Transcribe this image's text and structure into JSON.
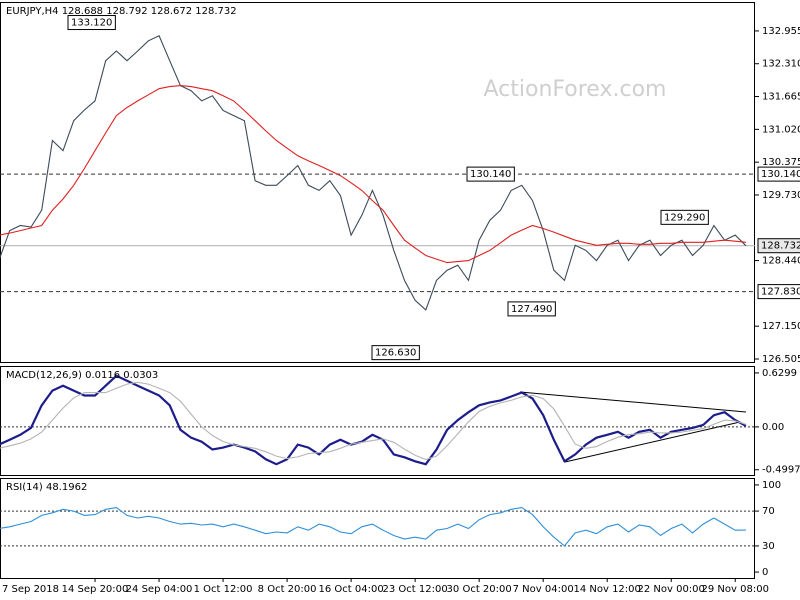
{
  "chart_data": [
    {
      "type": "line",
      "title": "EURJPY,H4  128.688 128.792 128.672 128.732",
      "watermark": "ActionForex.com",
      "ylim": [
        126.446,
        133.504
      ],
      "yticks": [
        132.955,
        {
          "value": 132.31,
          "label": "132.310"
        },
        131.665,
        {
          "value": 131.02,
          "label": "131.020"
        },
        130.375,
        {
          "value": 129.73,
          "label": "129.730"
        },
        {
          "value": 128.44,
          "label": "128.440"
        },
        {
          "value": 127.15,
          "label": "127.150"
        },
        126.505
      ],
      "levels": [
        {
          "value": 130.14,
          "label": "130.140"
        },
        {
          "value": 127.83,
          "label": "127.830"
        }
      ],
      "last_price": 128.732,
      "annotations": [
        {
          "value": 133.12,
          "label": "133.120"
        },
        {
          "value": 130.14,
          "label": "130.140"
        },
        {
          "value": 129.29,
          "label": "129.290"
        },
        {
          "value": 127.49,
          "label": "127.490"
        },
        {
          "value": 126.63,
          "label": "126.630"
        }
      ],
      "series": [
        {
          "color": "#3b4a5a",
          "values": [
            128.45,
            129.03,
            129.13,
            129.1,
            129.43,
            130.8,
            130.6,
            131.19,
            131.4,
            131.58,
            132.37,
            132.56,
            132.37,
            132.56,
            132.76,
            132.86,
            132.37,
            131.88,
            131.78,
            131.58,
            131.68,
            131.39,
            131.29,
            131.19,
            130.01,
            129.92,
            129.92,
            130.11,
            130.31,
            129.92,
            129.82,
            130.01,
            129.72,
            128.94,
            129.33,
            129.82,
            129.33,
            128.64,
            128.05,
            127.66,
            127.47,
            128.05,
            128.25,
            128.35,
            128.05,
            128.84,
            129.23,
            129.43,
            129.82,
            129.92,
            129.62,
            129.03,
            128.25,
            128.05,
            128.74,
            128.64,
            128.44,
            128.74,
            128.84,
            128.44,
            128.74,
            128.84,
            128.54,
            128.74,
            128.84,
            128.54,
            128.74,
            129.13,
            128.84,
            128.94,
            128.732
          ]
        },
        {
          "color": "#e02020",
          "values": [
            128.94,
            128.98,
            129.03,
            129.08,
            129.13,
            129.43,
            129.65,
            129.92,
            130.25,
            130.6,
            130.95,
            131.29,
            131.45,
            131.58,
            131.7,
            131.82,
            131.86,
            131.88,
            131.86,
            131.82,
            131.78,
            131.68,
            131.58,
            131.39,
            131.19,
            130.99,
            130.8,
            130.65,
            130.5,
            130.4,
            130.31,
            130.21,
            130.11,
            129.97,
            129.82,
            129.62,
            129.43,
            129.13,
            128.84,
            128.69,
            128.54,
            128.47,
            128.4,
            128.42,
            128.44,
            128.54,
            128.64,
            128.79,
            128.94,
            129.04,
            129.13,
            129.07,
            129.0,
            128.92,
            128.84,
            128.79,
            128.74,
            128.76,
            128.78,
            128.78,
            128.76,
            128.76,
            128.78,
            128.78,
            128.8,
            128.8,
            128.8,
            128.82,
            128.84,
            128.82,
            128.8
          ]
        }
      ]
    },
    {
      "type": "line",
      "title": "MACD(12,26,9) 0.0116 0.0303",
      "ylim": [
        -0.561,
        0.699
      ],
      "yticks": [
        0.6299,
        {
          "value": 0,
          "label": "0.00"
        },
        -0.4997
      ],
      "levels": [
        0
      ],
      "series": [
        {
          "color": "#1c1c8c",
          "values": [
            -0.206,
            -0.149,
            -0.092,
            -0.011,
            0.252,
            0.424,
            0.481,
            0.424,
            0.367,
            0.367,
            0.481,
            0.596,
            0.538,
            0.481,
            0.424,
            0.367,
            0.252,
            -0.034,
            -0.126,
            -0.172,
            -0.263,
            -0.241,
            -0.206,
            -0.241,
            -0.286,
            -0.378,
            -0.435,
            -0.378,
            -0.206,
            -0.241,
            -0.321,
            -0.206,
            -0.149,
            -0.206,
            -0.172,
            -0.092,
            -0.149,
            -0.321,
            -0.355,
            -0.401,
            -0.435,
            -0.263,
            -0.034,
            0.08,
            0.172,
            0.252,
            0.286,
            0.309,
            0.355,
            0.401,
            0.332,
            0.137,
            -0.149,
            -0.401,
            -0.321,
            -0.206,
            -0.126,
            -0.092,
            -0.057,
            -0.126,
            -0.057,
            -0.034,
            -0.126,
            -0.057,
            -0.034,
            -0.011,
            0.023,
            0.137,
            0.172,
            0.08,
            0.0116
          ]
        },
        {
          "color": "#b4b4b4",
          "values": [
            -0.25,
            -0.22,
            -0.19,
            -0.14,
            -0.06,
            0.08,
            0.22,
            0.34,
            0.4,
            0.4,
            0.4,
            0.45,
            0.5,
            0.52,
            0.5,
            0.45,
            0.4,
            0.3,
            0.15,
            0.0,
            -0.1,
            -0.17,
            -0.21,
            -0.23,
            -0.25,
            -0.29,
            -0.34,
            -0.37,
            -0.35,
            -0.31,
            -0.3,
            -0.29,
            -0.25,
            -0.2,
            -0.18,
            -0.16,
            -0.14,
            -0.18,
            -0.26,
            -0.33,
            -0.38,
            -0.34,
            -0.22,
            -0.08,
            0.06,
            0.18,
            0.24,
            0.28,
            0.31,
            0.35,
            0.37,
            0.33,
            0.21,
            0.01,
            -0.2,
            -0.25,
            -0.23,
            -0.17,
            -0.12,
            -0.09,
            -0.08,
            -0.06,
            -0.07,
            -0.07,
            -0.06,
            -0.04,
            -0.02,
            0.03,
            0.08,
            0.07,
            0.0303
          ]
        }
      ]
    },
    {
      "type": "line",
      "title": "RSI(14) 48.1962",
      "ylim": [
        -6.8,
        106.8
      ],
      "yticks": [
        100,
        70,
        30,
        0
      ],
      "levels": [
        70,
        30
      ],
      "categories": [
        "7 Sep 2018",
        null,
        null,
        null,
        null,
        null,
        null,
        null,
        null,
        "14 Sep 20:00",
        null,
        null,
        null,
        null,
        null,
        "24 Sep 04:00",
        null,
        null,
        null,
        null,
        null,
        "1 Oct 12:00",
        null,
        null,
        null,
        null,
        null,
        "8 Oct 20:00",
        null,
        null,
        null,
        null,
        null,
        "16 Oct 04:00",
        null,
        null,
        null,
        null,
        null,
        "23 Oct 12:00",
        null,
        null,
        null,
        null,
        null,
        "30 Oct 20:00",
        null,
        null,
        null,
        null,
        null,
        "7 Nov 04:00",
        null,
        null,
        null,
        null,
        null,
        "14 Nov 12:00",
        null,
        null,
        null,
        null,
        null,
        "22 Nov 00:00",
        null,
        null,
        null,
        null,
        null,
        "29 Nov 08:00",
        null
      ],
      "series": [
        {
          "color": "#2f8fd8",
          "values": [
            50,
            52,
            55,
            58,
            65,
            68,
            72,
            70,
            65,
            66,
            72,
            74,
            65,
            62,
            64,
            62,
            58,
            55,
            56,
            54,
            55,
            52,
            55,
            52,
            48,
            44,
            46,
            45,
            52,
            48,
            55,
            52,
            46,
            44,
            52,
            55,
            48,
            42,
            38,
            40,
            38,
            48,
            50,
            55,
            50,
            60,
            66,
            68,
            72,
            74,
            66,
            52,
            40,
            30,
            45,
            48,
            44,
            52,
            55,
            46,
            54,
            52,
            42,
            50,
            55,
            45,
            55,
            62,
            55,
            48,
            48.1962
          ]
        }
      ]
    }
  ]
}
